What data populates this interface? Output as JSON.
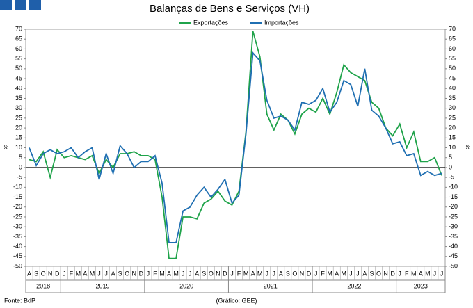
{
  "chart_data": {
    "type": "line",
    "title": "Balanças de Bens e Serviços (VH)",
    "ylabel": "%",
    "categories": [
      "A",
      "S",
      "O",
      "N",
      "D",
      "J",
      "F",
      "M",
      "A",
      "M",
      "J",
      "J",
      "A",
      "S",
      "O",
      "N",
      "D",
      "J",
      "F",
      "M",
      "A",
      "M",
      "J",
      "J",
      "A",
      "S",
      "O",
      "N",
      "D",
      "J",
      "F",
      "M",
      "A",
      "M",
      "J",
      "J",
      "A",
      "S",
      "O",
      "N",
      "D",
      "J",
      "F",
      "M",
      "A",
      "M",
      "J",
      "J",
      "A",
      "S",
      "O",
      "N",
      "D",
      "J",
      "F",
      "M",
      "A",
      "M",
      "J",
      "J"
    ],
    "year_groups": [
      {
        "label": "2018",
        "count": 5
      },
      {
        "label": "2019",
        "count": 12
      },
      {
        "label": "2020",
        "count": 12
      },
      {
        "label": "2021",
        "count": 12
      },
      {
        "label": "2022",
        "count": 12
      },
      {
        "label": "2023",
        "count": 7
      }
    ],
    "series": [
      {
        "name": "Exportações",
        "color": "#1fa34a",
        "values": [
          4,
          3,
          8,
          -5,
          9,
          5,
          6,
          5,
          4,
          6,
          -3,
          4,
          0,
          7,
          7,
          8,
          6,
          6,
          4,
          -15,
          -46,
          -46,
          -25,
          -25,
          -26,
          -18,
          -16,
          -12,
          -17,
          -19,
          -12,
          18,
          69,
          56,
          27,
          19,
          27,
          24,
          17,
          27,
          30,
          28,
          35,
          27,
          38,
          52,
          48,
          46,
          44,
          33,
          30,
          20,
          16,
          22,
          10,
          18,
          3,
          3,
          5,
          -4
        ]
      },
      {
        "name": "Importações",
        "color": "#1f6fb2",
        "values": [
          10,
          1,
          7,
          9,
          7,
          8,
          10,
          5,
          8,
          10,
          -6,
          7,
          -3,
          11,
          7,
          0,
          3,
          3,
          6,
          -8,
          -38,
          -38,
          -22,
          -20,
          -14,
          -10,
          -15,
          -11,
          -6,
          -18,
          -14,
          17,
          58,
          54,
          34,
          25,
          26,
          24,
          19,
          33,
          32,
          34,
          40,
          28,
          33,
          44,
          42,
          31,
          50,
          29,
          26,
          20,
          12,
          13,
          6,
          7,
          -4,
          -2,
          -4,
          -3
        ]
      }
    ],
    "ylim": [
      -50,
      70
    ],
    "yticks": [
      -50,
      -45,
      -40,
      -35,
      -30,
      -25,
      -20,
      -15,
      -10,
      -5,
      0,
      5,
      10,
      15,
      20,
      25,
      30,
      35,
      40,
      45,
      50,
      55,
      60,
      65,
      70
    ],
    "source": "Fonte: BdP",
    "credit": "(Gráfico: GEE)"
  }
}
